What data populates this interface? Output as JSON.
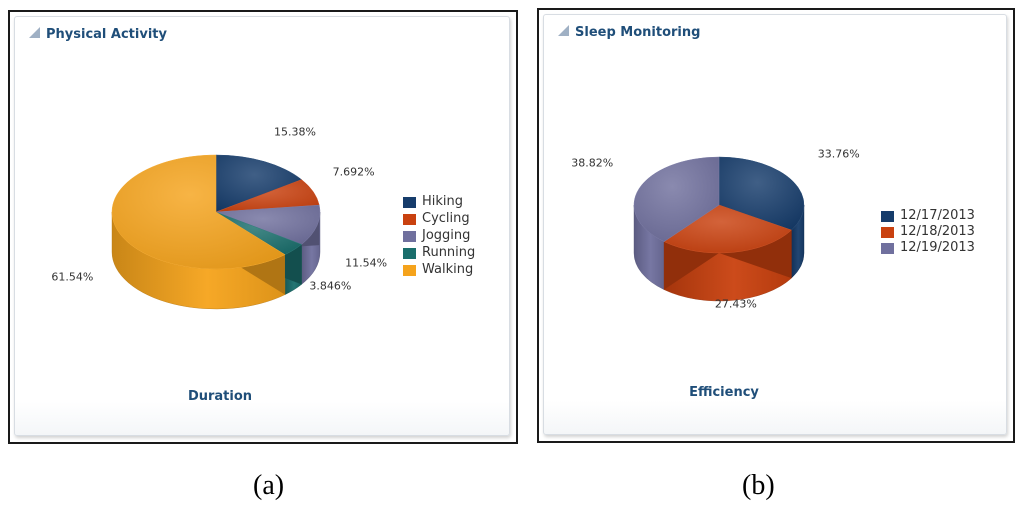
{
  "panels": [
    {
      "title": "Physical Activity",
      "caption": "(a)",
      "chart_subtitle": "Duration",
      "legend": [
        "Hiking",
        "Cycling",
        "Jogging",
        "Running",
        "Walking"
      ]
    },
    {
      "title": "Sleep Monitoring",
      "caption": "(b)",
      "chart_subtitle": "Efficiency",
      "legend": [
        "12/17/2013",
        "12/18/2013",
        "12/19/2013"
      ]
    }
  ],
  "chart_data": [
    {
      "type": "pie",
      "title": "Physical Activity",
      "subtitle": "Duration",
      "categories": [
        "Hiking",
        "Cycling",
        "Jogging",
        "Running",
        "Walking"
      ],
      "values": [
        15.38,
        7.692,
        11.54,
        3.846,
        61.54
      ],
      "labels": [
        "15.38%",
        "7.692%",
        "11.54%",
        "3.846%",
        "61.54%"
      ],
      "colors": [
        "#163c6b",
        "#c9410f",
        "#70709e",
        "#1a6e6c",
        "#f5a31c"
      ],
      "legend_position": "right"
    },
    {
      "type": "pie",
      "title": "Sleep Monitoring",
      "subtitle": "Efficiency",
      "categories": [
        "12/17/2013",
        "12/18/2013",
        "12/19/2013"
      ],
      "values": [
        33.76,
        27.43,
        38.82
      ],
      "labels": [
        "33.76%",
        "27.43%",
        "38.82%"
      ],
      "colors": [
        "#163c6b",
        "#c9410f",
        "#70709e"
      ],
      "legend_position": "right"
    }
  ]
}
